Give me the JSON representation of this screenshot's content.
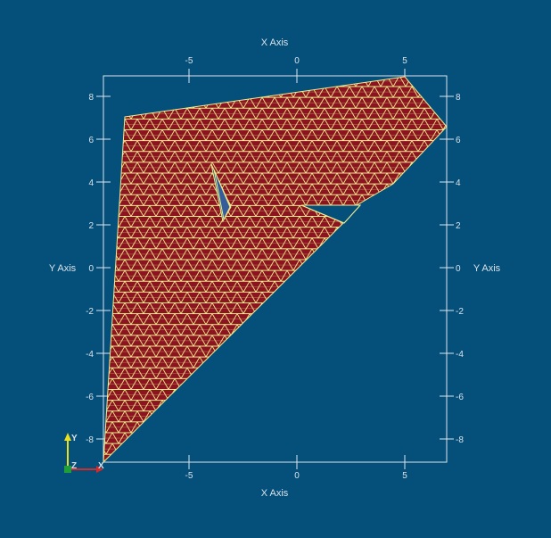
{
  "axes": {
    "top_title": "X Axis",
    "bottom_title": "X Axis",
    "left_title": "Y Axis",
    "right_title": "Y Axis",
    "x_ticks": [
      "-5",
      "0",
      "5"
    ],
    "y_ticks": [
      "8",
      "6",
      "4",
      "2",
      "0",
      "-2",
      "-4",
      "-6",
      "-8"
    ]
  },
  "triad": {
    "y_label": "Y",
    "z_label": "Z",
    "x_label": "X"
  },
  "colors": {
    "background": "#05507a",
    "mesh_fill": "#8b1420",
    "mesh_lines": "#f2ee8e",
    "axes": "#dde6ee",
    "hole_tint": "#3c5e9e"
  }
}
